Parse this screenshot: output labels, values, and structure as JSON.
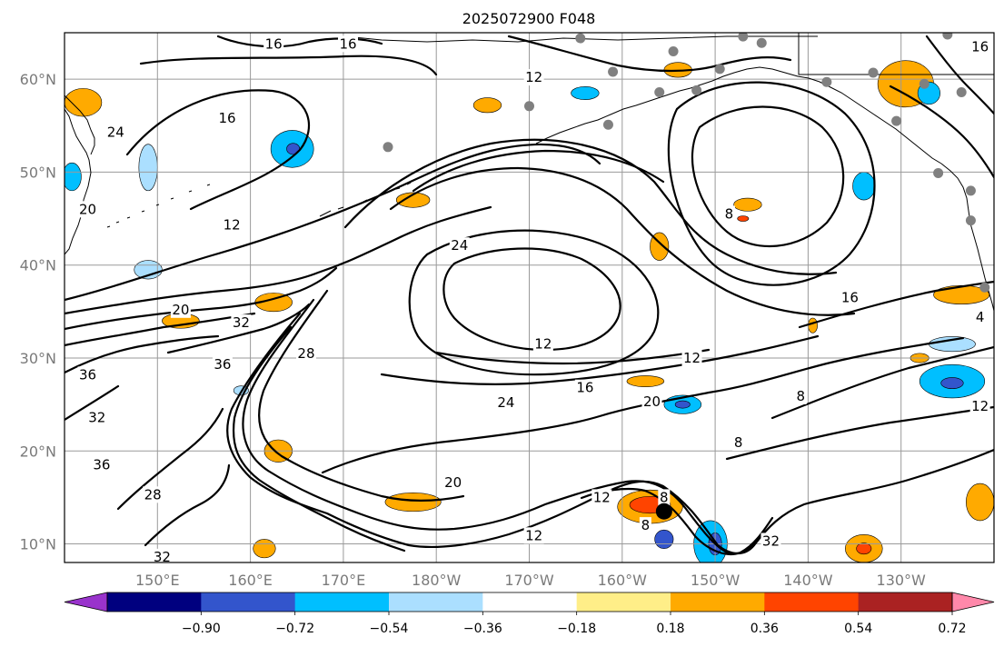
{
  "title": "2025072900 F048",
  "map": {
    "lon_range": [
      140,
      240
    ],
    "lat_range": [
      8,
      65
    ],
    "lon_ticks": [
      {
        "lon": 150,
        "label": "150°E"
      },
      {
        "lon": 160,
        "label": "160°E"
      },
      {
        "lon": 170,
        "label": "170°E"
      },
      {
        "lon": 180,
        "label": "180°W"
      },
      {
        "lon": 190,
        "label": "170°W"
      },
      {
        "lon": 200,
        "label": "160°W"
      },
      {
        "lon": 210,
        "label": "150°W"
      },
      {
        "lon": 220,
        "label": "140°W"
      },
      {
        "lon": 230,
        "label": "130°W"
      }
    ],
    "lat_ticks": [
      {
        "lat": 10,
        "label": "10°N"
      },
      {
        "lat": 20,
        "label": "20°N"
      },
      {
        "lat": 30,
        "label": "30°N"
      },
      {
        "lat": 40,
        "label": "40°N"
      },
      {
        "lat": 50,
        "label": "50°N"
      },
      {
        "lat": 60,
        "label": "60°N"
      }
    ],
    "contour_labels": [
      {
        "lon": 162.5,
        "lat": 63.8,
        "text": "16"
      },
      {
        "lon": 170.5,
        "lat": 63.8,
        "text": "16"
      },
      {
        "lon": 190.5,
        "lat": 60.2,
        "text": "12"
      },
      {
        "lon": 157.5,
        "lat": 55.8,
        "text": "16"
      },
      {
        "lon": 145.5,
        "lat": 54.3,
        "text": "24"
      },
      {
        "lon": 158.0,
        "lat": 44.3,
        "text": "12"
      },
      {
        "lon": 142.5,
        "lat": 46.0,
        "text": "20"
      },
      {
        "lon": 152.5,
        "lat": 35.2,
        "text": "20"
      },
      {
        "lon": 159.0,
        "lat": 33.8,
        "text": "32"
      },
      {
        "lon": 157.0,
        "lat": 29.3,
        "text": "36"
      },
      {
        "lon": 142.5,
        "lat": 28.2,
        "text": "36"
      },
      {
        "lon": 143.5,
        "lat": 23.6,
        "text": "32"
      },
      {
        "lon": 144.0,
        "lat": 18.5,
        "text": "36"
      },
      {
        "lon": 149.5,
        "lat": 15.3,
        "text": "28"
      },
      {
        "lon": 150.5,
        "lat": 8.6,
        "text": "32"
      },
      {
        "lon": 166.0,
        "lat": 30.5,
        "text": "28"
      },
      {
        "lon": 182.5,
        "lat": 42.1,
        "text": "24"
      },
      {
        "lon": 191.5,
        "lat": 31.5,
        "text": "12"
      },
      {
        "lon": 207.5,
        "lat": 30.0,
        "text": "12"
      },
      {
        "lon": 196.0,
        "lat": 26.8,
        "text": "16"
      },
      {
        "lon": 187.5,
        "lat": 25.2,
        "text": "24"
      },
      {
        "lon": 203.2,
        "lat": 25.3,
        "text": "20"
      },
      {
        "lon": 181.8,
        "lat": 16.6,
        "text": "20"
      },
      {
        "lon": 190.5,
        "lat": 10.9,
        "text": "12"
      },
      {
        "lon": 197.8,
        "lat": 15.0,
        "text": "12"
      },
      {
        "lon": 204.5,
        "lat": 15.0,
        "text": "8"
      },
      {
        "lon": 202.5,
        "lat": 12.0,
        "text": "8"
      },
      {
        "lon": 216.0,
        "lat": 10.3,
        "text": "32"
      },
      {
        "lon": 219.2,
        "lat": 25.9,
        "text": "8"
      },
      {
        "lon": 212.5,
        "lat": 20.9,
        "text": "8"
      },
      {
        "lon": 211.5,
        "lat": 45.5,
        "text": "8"
      },
      {
        "lon": 224.5,
        "lat": 36.5,
        "text": "16"
      },
      {
        "lon": 238.5,
        "lat": 34.4,
        "text": "4"
      },
      {
        "lon": 238.5,
        "lat": 24.8,
        "text": "12"
      },
      {
        "lon": 238.5,
        "lat": 63.5,
        "text": "16"
      }
    ],
    "stations": [
      {
        "lon": 195.5,
        "lat": 64.4
      },
      {
        "lon": 199.0,
        "lat": 60.8
      },
      {
        "lon": 205.5,
        "lat": 63.0
      },
      {
        "lon": 213.0,
        "lat": 64.6
      },
      {
        "lon": 215.0,
        "lat": 63.9
      },
      {
        "lon": 210.5,
        "lat": 61.1
      },
      {
        "lon": 208.0,
        "lat": 58.8
      },
      {
        "lon": 204.0,
        "lat": 58.6
      },
      {
        "lon": 190.0,
        "lat": 57.1
      },
      {
        "lon": 198.5,
        "lat": 55.1
      },
      {
        "lon": 174.8,
        "lat": 52.7
      },
      {
        "lon": 222.0,
        "lat": 59.7
      },
      {
        "lon": 227.0,
        "lat": 60.7
      },
      {
        "lon": 232.5,
        "lat": 59.5
      },
      {
        "lon": 236.5,
        "lat": 58.6
      },
      {
        "lon": 229.5,
        "lat": 55.5
      },
      {
        "lon": 234.0,
        "lat": 49.9
      },
      {
        "lon": 237.5,
        "lat": 48.0
      },
      {
        "lon": 237.5,
        "lat": 44.8
      },
      {
        "lon": 239.0,
        "lat": 37.6
      },
      {
        "lon": 235.0,
        "lat": 64.8
      }
    ],
    "marker": {
      "lon": 204.5,
      "lat": 13.5
    }
  },
  "colorbar": {
    "colors": [
      "#9933cc",
      "#00007f",
      "#3355cc",
      "#00bfff",
      "#abdfff",
      "#ffffff",
      "#ffee88",
      "#ffaa00",
      "#ff4400",
      "#aa2222",
      "#ff88aa"
    ],
    "tick_labels": [
      "−0.90",
      "−0.72",
      "−0.54",
      "−0.36",
      "−0.18",
      "0.18",
      "0.36",
      "0.54",
      "0.72",
      "0.90"
    ]
  },
  "chart_data": {
    "type": "heatmap",
    "title": "2025072900 F048",
    "xlabel": "",
    "ylabel": "",
    "x_range": [
      140,
      240
    ],
    "y_range": [
      8,
      65
    ],
    "levels": [
      -0.9,
      -0.72,
      -0.54,
      -0.36,
      -0.18,
      0.18,
      0.36,
      0.54,
      0.72,
      0.9
    ],
    "colorbar_extend": "both",
    "contour_levels": [
      4,
      8,
      12,
      16,
      20,
      24,
      28,
      32,
      36
    ],
    "anomaly_patches": [
      {
        "lon": 142,
        "lat": 57.5,
        "rlon": 2.0,
        "rlat": 1.5,
        "value": 0.45
      },
      {
        "lon": 162.5,
        "lat": 36.0,
        "rlon": 2.0,
        "rlat": 1.0,
        "value": 0.45
      },
      {
        "lon": 152.5,
        "lat": 34.0,
        "rlon": 2.0,
        "rlat": 0.8,
        "value": 0.45
      },
      {
        "lon": 177.5,
        "lat": 47.0,
        "rlon": 1.8,
        "rlat": 0.8,
        "value": 0.45
      },
      {
        "lon": 164.5,
        "lat": 52.5,
        "rlon": 2.3,
        "rlat": 2.0,
        "value": -0.45
      },
      {
        "lon": 164.6,
        "lat": 52.5,
        "rlon": 0.7,
        "rlat": 0.6,
        "value": -0.63
      },
      {
        "lon": 149.0,
        "lat": 50.5,
        "rlon": 1.0,
        "rlat": 2.5,
        "value": -0.3
      },
      {
        "lon": 149.0,
        "lat": 39.5,
        "rlon": 1.5,
        "rlat": 1.0,
        "value": -0.3
      },
      {
        "lon": 140.8,
        "lat": 49.5,
        "rlon": 1.0,
        "rlat": 1.5,
        "value": -0.45
      },
      {
        "lon": 185.5,
        "lat": 57.2,
        "rlon": 1.5,
        "rlat": 0.8,
        "value": 0.45
      },
      {
        "lon": 196.0,
        "lat": 58.5,
        "rlon": 1.5,
        "rlat": 0.7,
        "value": -0.45
      },
      {
        "lon": 206.0,
        "lat": 61.0,
        "rlon": 1.5,
        "rlat": 0.8,
        "value": 0.45
      },
      {
        "lon": 204.0,
        "lat": 42.0,
        "rlon": 1.0,
        "rlat": 1.5,
        "value": 0.45
      },
      {
        "lon": 213.5,
        "lat": 46.5,
        "rlon": 1.5,
        "rlat": 0.7,
        "value": 0.45
      },
      {
        "lon": 213.0,
        "lat": 45.0,
        "rlon": 0.6,
        "rlat": 0.3,
        "value": 0.63
      },
      {
        "lon": 226.0,
        "lat": 48.5,
        "rlon": 1.2,
        "rlat": 1.5,
        "value": -0.45
      },
      {
        "lon": 230.5,
        "lat": 59.5,
        "rlon": 3.0,
        "rlat": 2.5,
        "value": 0.45
      },
      {
        "lon": 233.0,
        "lat": 58.5,
        "rlon": 1.2,
        "rlat": 1.2,
        "value": -0.45
      },
      {
        "lon": 236.5,
        "lat": 36.8,
        "rlon": 3.0,
        "rlat": 1.0,
        "value": 0.45
      },
      {
        "lon": 235.5,
        "lat": 27.5,
        "rlon": 3.5,
        "rlat": 1.8,
        "value": -0.45
      },
      {
        "lon": 235.5,
        "lat": 27.3,
        "rlon": 1.2,
        "rlat": 0.6,
        "value": -0.63
      },
      {
        "lon": 235.5,
        "lat": 31.5,
        "rlon": 2.5,
        "rlat": 0.8,
        "value": -0.3
      },
      {
        "lon": 232.0,
        "lat": 30.0,
        "rlon": 1.0,
        "rlat": 0.5,
        "value": 0.45
      },
      {
        "lon": 206.5,
        "lat": 25.0,
        "rlon": 2.0,
        "rlat": 1.0,
        "value": -0.45
      },
      {
        "lon": 206.5,
        "lat": 25.0,
        "rlon": 0.8,
        "rlat": 0.4,
        "value": -0.63
      },
      {
        "lon": 202.5,
        "lat": 27.5,
        "rlon": 2.0,
        "rlat": 0.6,
        "value": 0.45
      },
      {
        "lon": 203.0,
        "lat": 14.0,
        "rlon": 3.5,
        "rlat": 1.8,
        "value": 0.45
      },
      {
        "lon": 203.0,
        "lat": 14.2,
        "rlon": 2.2,
        "rlat": 0.9,
        "value": 0.63
      },
      {
        "lon": 177.5,
        "lat": 14.5,
        "rlon": 3.0,
        "rlat": 1.0,
        "value": 0.45
      },
      {
        "lon": 209.5,
        "lat": 10.0,
        "rlon": 1.8,
        "rlat": 2.5,
        "value": -0.45
      },
      {
        "lon": 210.0,
        "lat": 10.0,
        "rlon": 0.7,
        "rlat": 1.2,
        "value": -0.63
      },
      {
        "lon": 204.5,
        "lat": 10.5,
        "rlon": 1.0,
        "rlat": 1.0,
        "value": -0.63
      },
      {
        "lon": 226.0,
        "lat": 9.5,
        "rlon": 2.0,
        "rlat": 1.5,
        "value": 0.45
      },
      {
        "lon": 226.0,
        "lat": 9.5,
        "rlon": 0.8,
        "rlat": 0.6,
        "value": 0.63
      },
      {
        "lon": 163.0,
        "lat": 20.0,
        "rlon": 1.5,
        "rlat": 1.2,
        "value": 0.45
      },
      {
        "lon": 161.5,
        "lat": 9.5,
        "rlon": 1.2,
        "rlat": 1.0,
        "value": 0.45
      },
      {
        "lon": 159.0,
        "lat": 26.5,
        "rlon": 0.8,
        "rlat": 0.5,
        "value": -0.3
      },
      {
        "lon": 238.5,
        "lat": 14.5,
        "rlon": 1.5,
        "rlat": 2.0,
        "value": 0.45
      },
      {
        "lon": 220.5,
        "lat": 33.5,
        "rlon": 0.5,
        "rlat": 0.8,
        "value": 0.45
      }
    ]
  }
}
